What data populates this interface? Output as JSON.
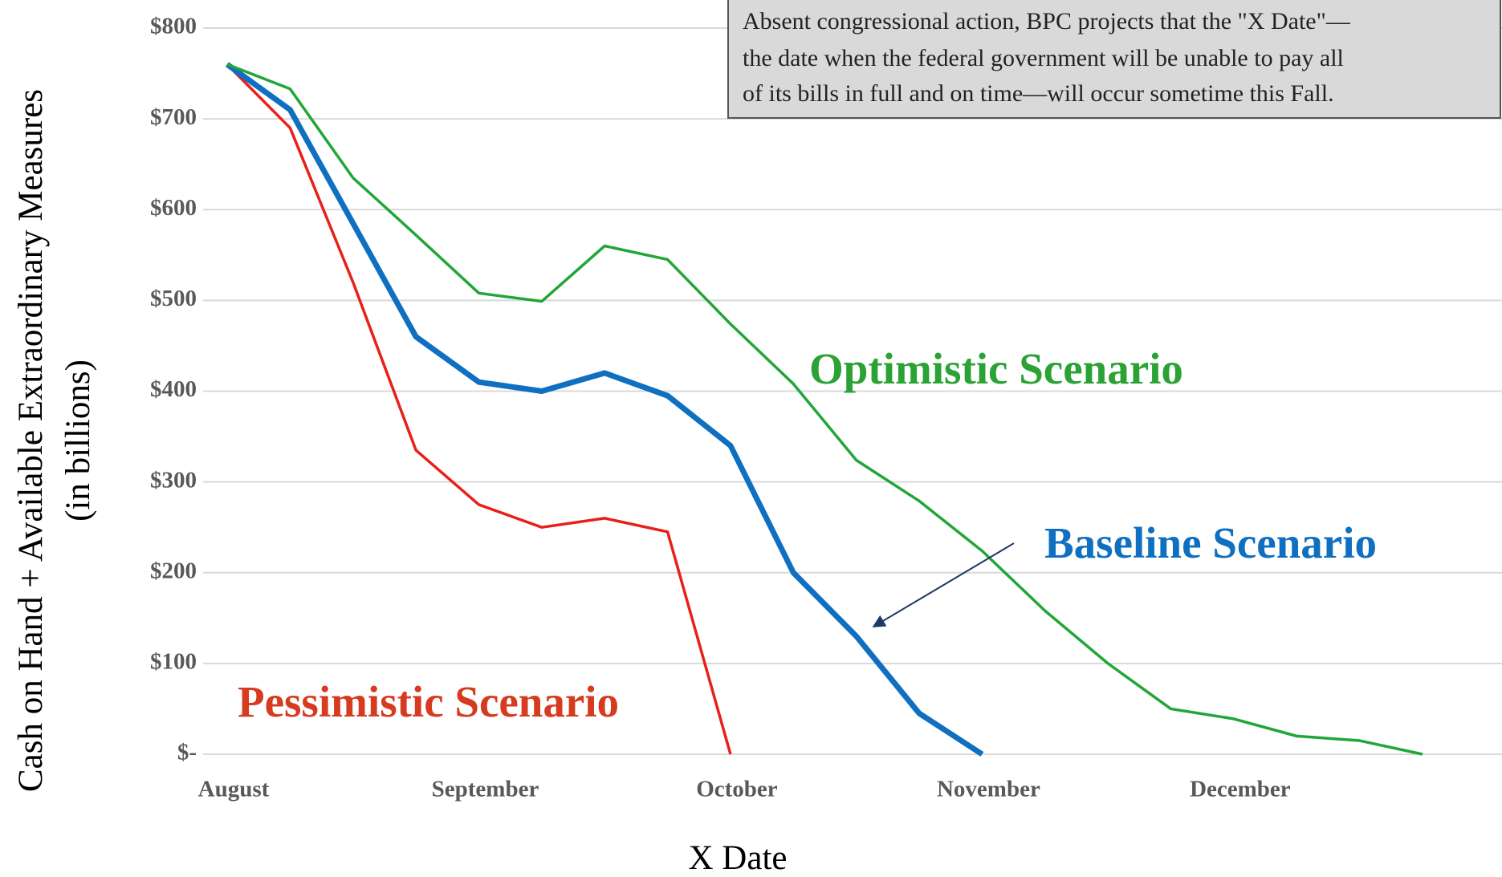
{
  "chart_data": {
    "type": "line",
    "x_label": "X Date",
    "y_label": [
      "Cash on Hand + Available Extraordinary Measures",
      "(in billions)"
    ],
    "note": [
      "Absent congressional action, BPC projects that the \"X Date\"—",
      "the date when the federal government will be unable to pay all",
      "of its bills in full and on time—will occur sometime this Fall."
    ],
    "categories": [
      "August",
      null,
      null,
      null,
      "September",
      null,
      null,
      null,
      "October",
      null,
      null,
      null,
      "November",
      null,
      null,
      null,
      "December",
      null,
      null,
      null
    ],
    "series": [
      {
        "name": "Optimistic Scenario",
        "color": "#22a638",
        "values": [
          760,
          733,
          635,
          572,
          508,
          499,
          560,
          545,
          474,
          408,
          324,
          279,
          224,
          158,
          100,
          50,
          39,
          20,
          15,
          0
        ]
      },
      {
        "name": "Baseline Scenario",
        "color": "#0f6fc0",
        "values": [
          760,
          710,
          585,
          460,
          410,
          400,
          420,
          395,
          340,
          200,
          130,
          45,
          0,
          null,
          null,
          null,
          null,
          null,
          null,
          null
        ]
      },
      {
        "name": "Pessimistic Scenario",
        "color": "#e8201a",
        "values": [
          760,
          690,
          520,
          335,
          275,
          250,
          260,
          245,
          0,
          null,
          null,
          null,
          null,
          null,
          null,
          null,
          null,
          null,
          null,
          null
        ]
      }
    ],
    "label_colors": [
      "#2aa234",
      "#0f6fc0",
      "#d63b1f"
    ],
    "ylim": [
      0,
      800
    ],
    "yticks": [
      {
        "value": 0,
        "label": "$-"
      },
      {
        "value": 100,
        "label": "$100"
      },
      {
        "value": 200,
        "label": "$200"
      },
      {
        "value": 300,
        "label": "$300"
      },
      {
        "value": 400,
        "label": "$400"
      },
      {
        "value": 500,
        "label": "$500"
      },
      {
        "value": 600,
        "label": "$600"
      },
      {
        "value": 700,
        "label": "$700"
      },
      {
        "value": 800,
        "label": "$800"
      }
    ],
    "grid": true
  }
}
